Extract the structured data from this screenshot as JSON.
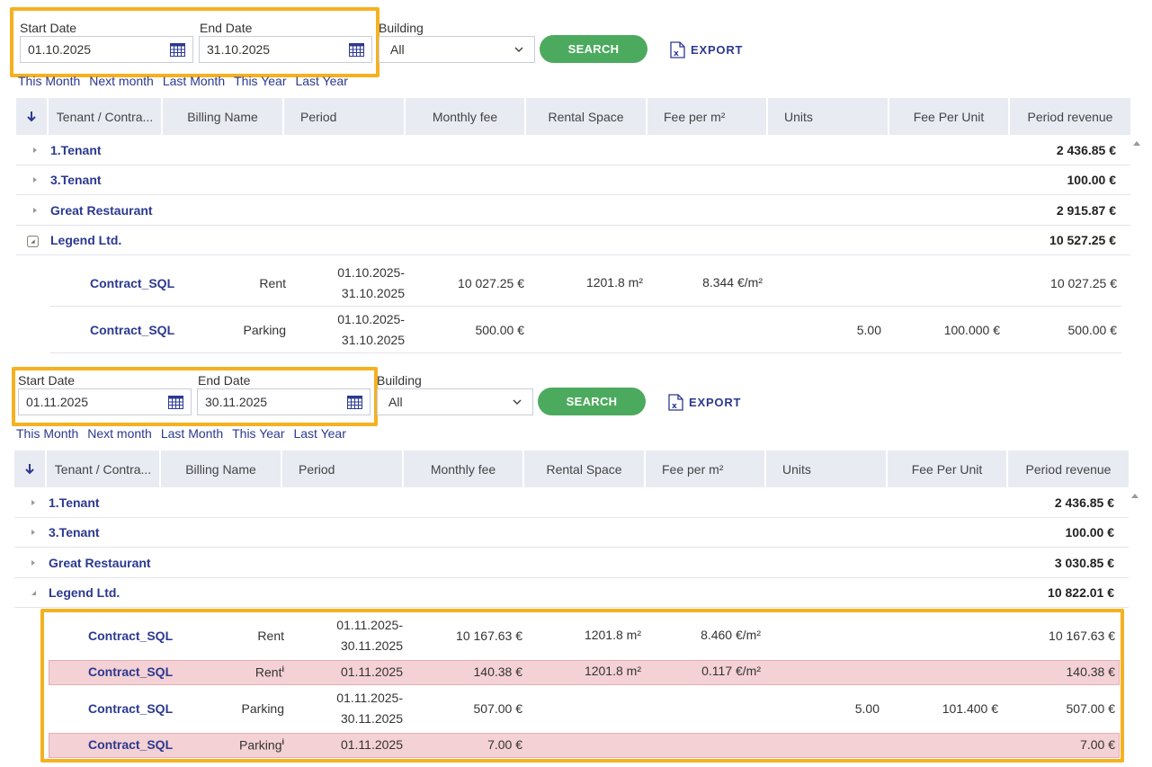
{
  "filters": {
    "start_label": "Start Date",
    "end_label": "End Date",
    "building_label": "Building",
    "search_label": "SEARCH",
    "export_label": "EXPORT",
    "quick_links": [
      "This Month",
      "Next month",
      "Last Month",
      "This Year",
      "Last Year"
    ]
  },
  "columns": [
    "Tenant / Contra...",
    "Billing Name",
    "Period",
    "Monthly fee",
    "Rental Space",
    "Fee per m²",
    "Units",
    "Fee Per Unit",
    "Period revenue"
  ],
  "colors": {
    "accent": "#2b3990",
    "search": "#4caa5e",
    "highlight": "#f5b120",
    "correction_row": "#f4d1d4"
  },
  "panel1": {
    "start_date": "01.10.2025",
    "end_date": "31.10.2025",
    "building": "All",
    "tenants": [
      {
        "name": "1.Tenant",
        "total": "2 436.85 €"
      },
      {
        "name": "3.Tenant",
        "total": "100.00 €"
      },
      {
        "name": "Great Restaurant",
        "total": "2 915.87 €"
      },
      {
        "name": "Legend Ltd.",
        "total": "10 527.25 €"
      }
    ],
    "contracts": [
      {
        "contract": "Contract_SQL",
        "billing": "Rent",
        "period_from": "01.10.2025-",
        "period_to": "31.10.2025",
        "monthly_fee": "10 027.25 €",
        "space": "1201.8 m²",
        "fee_m2": "8.344 €/m²",
        "units": "",
        "fee_unit": "",
        "revenue": "10 027.25 €"
      },
      {
        "contract": "Contract_SQL",
        "billing": "Parking",
        "period_from": "01.10.2025-",
        "period_to": "31.10.2025",
        "monthly_fee": "500.00 €",
        "space": "",
        "fee_m2": "",
        "units": "5.00",
        "fee_unit": "100.000 €",
        "revenue": "500.00 €"
      }
    ]
  },
  "panel2": {
    "start_date": "01.11.2025",
    "end_date": "30.11.2025",
    "building": "All",
    "tenants": [
      {
        "name": "1.Tenant",
        "total": "2 436.85 €"
      },
      {
        "name": "3.Tenant",
        "total": "100.00 €"
      },
      {
        "name": "Great Restaurant",
        "total": "3 030.85 €"
      },
      {
        "name": "Legend Ltd.",
        "total": "10 822.01 €"
      }
    ],
    "contracts": [
      {
        "contract": "Contract_SQL",
        "billing": "Rent",
        "period_from": "01.11.2025-",
        "period_to": "30.11.2025",
        "monthly_fee": "10 167.63 €",
        "space": "1201.8 m²",
        "fee_m2": "8.460 €/m²",
        "units": "",
        "fee_unit": "",
        "revenue": "10 167.63 €"
      },
      {
        "contract": "Contract_SQL",
        "billing": "Rent",
        "period": "01.11.2025",
        "monthly_fee": "140.38 €",
        "space": "1201.8 m²",
        "fee_m2": "0.117 €/m²",
        "revenue": "140.38 €"
      },
      {
        "contract": "Contract_SQL",
        "billing": "Parking",
        "period_from": "01.11.2025-",
        "period_to": "30.11.2025",
        "monthly_fee": "507.00 €",
        "space": "",
        "fee_m2": "",
        "units": "5.00",
        "fee_unit": "101.400 €",
        "revenue": "507.00 €"
      },
      {
        "contract": "Contract_SQL",
        "billing": "Parking",
        "period": "01.11.2025",
        "monthly_fee": "7.00 €",
        "space": "",
        "fee_m2": "",
        "revenue": "7.00 €"
      }
    ],
    "info_marker": "i"
  }
}
